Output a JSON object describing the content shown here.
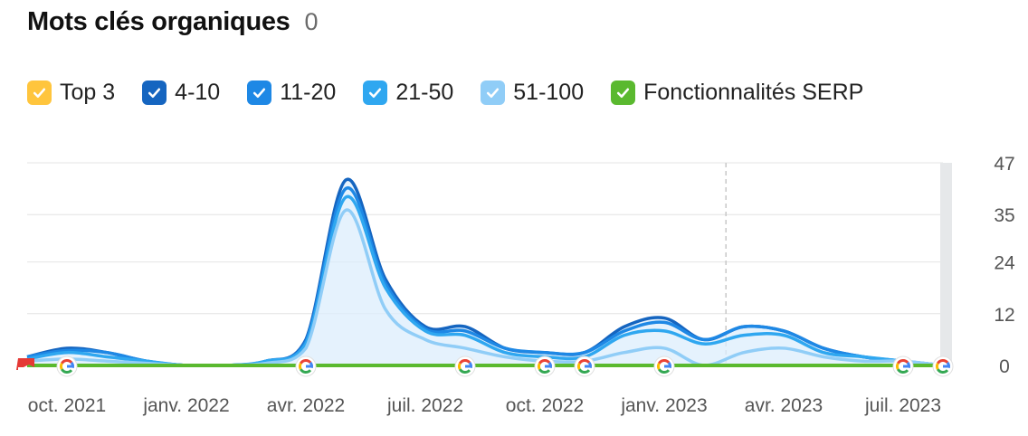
{
  "header": {
    "title": "Mots clés organiques",
    "count": "0"
  },
  "legend": [
    {
      "label": "Top 3",
      "color": "#ffc53d",
      "checked": true
    },
    {
      "label": "4-10",
      "color": "#1565c0",
      "checked": true
    },
    {
      "label": "11-20",
      "color": "#1e88e5",
      "checked": true
    },
    {
      "label": "21-50",
      "color": "#2fa7f0",
      "checked": true
    },
    {
      "label": "51-100",
      "color": "#90cdf7",
      "checked": true
    },
    {
      "label": "Fonctionnalités SERP",
      "color": "#5ab92f",
      "checked": true
    }
  ],
  "chart_data": {
    "type": "area",
    "x": [
      "2021-09",
      "2021-10",
      "2021-11",
      "2021-12",
      "2022-01",
      "2022-02",
      "2022-03",
      "2022-04",
      "2022-05",
      "2022-06",
      "2022-07",
      "2022-08",
      "2022-09",
      "2022-10",
      "2022-11",
      "2022-12",
      "2023-01",
      "2023-02",
      "2023-03",
      "2023-04",
      "2023-05",
      "2023-06",
      "2023-07",
      "2023-08"
    ],
    "x_tick_labels": [
      "oct. 2021",
      "janv. 2022",
      "avr. 2022",
      "juil. 2022",
      "oct. 2022",
      "janv. 2023",
      "avr. 2023",
      "juil. 2023"
    ],
    "y_tick_labels": [
      "0",
      "12",
      "24",
      "35",
      "47"
    ],
    "ylim": [
      0,
      47
    ],
    "series": [
      {
        "name": "Top 3",
        "color": "#ffc53d",
        "values": [
          0,
          0,
          0,
          0,
          0,
          0,
          0,
          0,
          0,
          0,
          0,
          0,
          0,
          0,
          0,
          0,
          0,
          0,
          0,
          0,
          0,
          0,
          0,
          0
        ]
      },
      {
        "name": "4-10",
        "color": "#1565c0",
        "values": [
          2,
          4,
          3,
          1,
          0,
          0,
          1,
          6,
          43,
          20,
          9,
          9,
          4,
          3,
          3,
          9,
          11,
          6,
          9,
          8,
          4,
          2,
          1,
          0
        ]
      },
      {
        "name": "11-20",
        "color": "#1e88e5",
        "values": [
          2,
          3.5,
          3,
          1,
          0,
          0,
          1,
          5.5,
          41,
          19,
          8.5,
          8,
          4,
          3,
          3,
          8,
          10,
          6,
          9,
          8,
          4,
          2,
          1,
          0
        ]
      },
      {
        "name": "21-50",
        "color": "#2fa7f0",
        "values": [
          1.5,
          3,
          2,
          1,
          0,
          0,
          1,
          5,
          39,
          18,
          8,
          7,
          3,
          2,
          2,
          7,
          8,
          5,
          7,
          7,
          3,
          2,
          1,
          0
        ]
      },
      {
        "name": "51-100",
        "color": "#90cdf7",
        "values": [
          1,
          1.5,
          1,
          0.5,
          0,
          0,
          0.5,
          4,
          36,
          13,
          6,
          4,
          2,
          1,
          1,
          3,
          4,
          0,
          3,
          4,
          2,
          1,
          1,
          0
        ]
      },
      {
        "name": "Fonctionnalités SERP",
        "color": "#5ab92f",
        "values": [
          0,
          0,
          0,
          0,
          0,
          0,
          0,
          0,
          0,
          0,
          0,
          0,
          0,
          0,
          0,
          0,
          0,
          0,
          0,
          0,
          0,
          0,
          0,
          0
        ]
      }
    ],
    "google_update_markers": [
      "2021-10",
      "2022-04",
      "2022-08",
      "2022-10",
      "2022-11",
      "2023-01",
      "2023-07",
      "2023-08"
    ],
    "note_flag": "2021-09",
    "grid": true,
    "legend_position": "top"
  }
}
